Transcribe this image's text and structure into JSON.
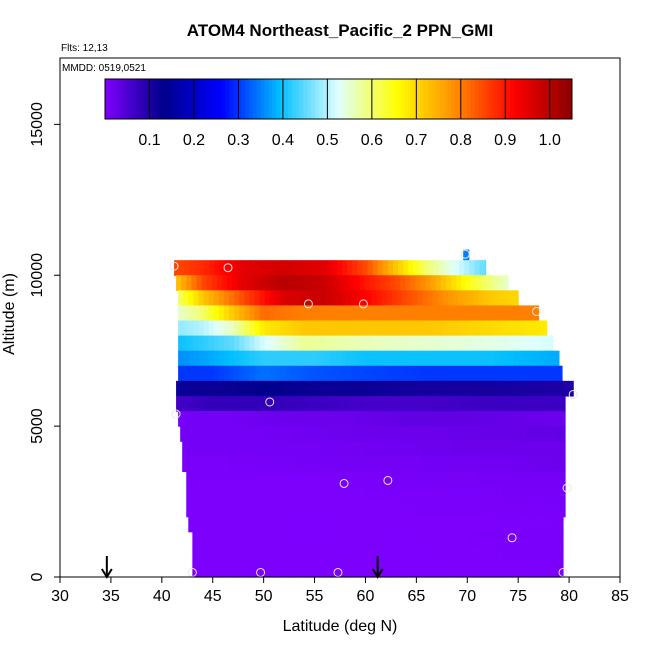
{
  "chart_data": {
    "type": "heatmap",
    "title": "ATOM4 Northeast_Pacific_2 PPN_GMI",
    "subtitle_flights": "Flts: 12,13",
    "subtitle_dates": "MMDD: 0519,0521",
    "xlabel": "Latitude (deg N)",
    "ylabel": "Altitude (m)",
    "xlim": [
      30,
      85
    ],
    "ylim": [
      0,
      17200
    ],
    "x_ticks": [
      "30",
      "35",
      "40",
      "45",
      "50",
      "55",
      "60",
      "65",
      "70",
      "75",
      "80",
      "85"
    ],
    "y_ticks": [
      "0",
      "5000",
      "10000",
      "15000"
    ],
    "colorbar": {
      "range": [
        0,
        1.05
      ],
      "tick_labels": [
        "0.1",
        "0.2",
        "0.3",
        "0.4",
        "0.5",
        "0.6",
        "0.7",
        "0.8",
        "0.9",
        "1.0"
      ],
      "tick_values": [
        0.1,
        0.2,
        0.3,
        0.4,
        0.5,
        0.6,
        0.7,
        0.8,
        0.9,
        1.0
      ],
      "colors": [
        "#7f00ff",
        "#00008b",
        "#0000ff",
        "#00bfff",
        "#e0ffff",
        "#ffff00",
        "#ff8c00",
        "#ff0000",
        "#8b0000"
      ]
    },
    "altitude_bands": [
      {
        "alt_bottom": 10000,
        "alt_top": 10500,
        "lat_start": 41.2,
        "lat_end": 71.8,
        "values": [
          [
            41.2,
            0.85
          ],
          [
            44,
            0.88
          ],
          [
            48,
            0.95
          ],
          [
            52,
            0.97
          ],
          [
            56,
            0.95
          ],
          [
            60,
            0.85
          ],
          [
            63,
            0.72
          ],
          [
            66,
            0.6
          ],
          [
            69,
            0.52
          ],
          [
            71.8,
            0.45
          ]
        ]
      },
      {
        "alt_bottom": 9500,
        "alt_top": 10000,
        "lat_start": 41.4,
        "lat_end": 74,
        "values": [
          [
            41.4,
            0.72
          ],
          [
            44,
            0.85
          ],
          [
            48,
            0.95
          ],
          [
            52,
            1.0
          ],
          [
            56,
            0.98
          ],
          [
            60,
            0.9
          ],
          [
            63,
            0.85
          ],
          [
            66,
            0.78
          ],
          [
            70,
            0.65
          ],
          [
            74,
            0.55
          ]
        ]
      },
      {
        "alt_bottom": 9000,
        "alt_top": 9500,
        "lat_start": 41.6,
        "lat_end": 75,
        "values": [
          [
            41.6,
            0.6
          ],
          [
            44,
            0.72
          ],
          [
            48,
            0.85
          ],
          [
            52,
            0.96
          ],
          [
            56,
            0.98
          ],
          [
            60,
            0.92
          ],
          [
            64,
            0.85
          ],
          [
            68,
            0.78
          ],
          [
            72,
            0.72
          ],
          [
            75,
            0.7
          ]
        ]
      },
      {
        "alt_bottom": 8500,
        "alt_top": 9000,
        "lat_start": 41.6,
        "lat_end": 77,
        "values": [
          [
            41.6,
            0.55
          ],
          [
            44,
            0.6
          ],
          [
            47,
            0.72
          ],
          [
            50,
            0.82
          ],
          [
            54,
            0.8
          ],
          [
            60,
            0.8
          ],
          [
            66,
            0.8
          ],
          [
            72,
            0.8
          ],
          [
            77,
            0.8
          ]
        ]
      },
      {
        "alt_bottom": 8000,
        "alt_top": 8500,
        "lat_start": 41.6,
        "lat_end": 77.8,
        "values": [
          [
            41.6,
            0.48
          ],
          [
            44,
            0.5
          ],
          [
            47,
            0.56
          ],
          [
            50,
            0.68
          ],
          [
            54,
            0.72
          ],
          [
            60,
            0.72
          ],
          [
            66,
            0.72
          ],
          [
            72,
            0.7
          ],
          [
            77.8,
            0.68
          ]
        ]
      },
      {
        "alt_bottom": 7500,
        "alt_top": 8000,
        "lat_start": 41.6,
        "lat_end": 78.4,
        "values": [
          [
            41.6,
            0.4
          ],
          [
            44,
            0.42
          ],
          [
            47,
            0.45
          ],
          [
            50,
            0.52
          ],
          [
            54,
            0.58
          ],
          [
            60,
            0.56
          ],
          [
            66,
            0.55
          ],
          [
            72,
            0.54
          ],
          [
            78.4,
            0.52
          ]
        ]
      },
      {
        "alt_bottom": 7000,
        "alt_top": 7500,
        "lat_start": 41.6,
        "lat_end": 79,
        "values": [
          [
            41.6,
            0.36
          ],
          [
            45,
            0.38
          ],
          [
            50,
            0.42
          ],
          [
            55,
            0.42
          ],
          [
            60,
            0.4
          ],
          [
            66,
            0.4
          ],
          [
            72,
            0.4
          ],
          [
            79,
            0.38
          ]
        ]
      },
      {
        "alt_bottom": 6500,
        "alt_top": 7000,
        "lat_start": 41.6,
        "lat_end": 79.3,
        "values": [
          [
            41.6,
            0.3
          ],
          [
            45,
            0.3
          ],
          [
            50,
            0.34
          ],
          [
            55,
            0.32
          ],
          [
            60,
            0.31
          ],
          [
            66,
            0.3
          ],
          [
            72,
            0.3
          ],
          [
            79.3,
            0.3
          ]
        ]
      },
      {
        "alt_bottom": 6000,
        "alt_top": 6500,
        "lat_start": 41.4,
        "lat_end": 80.4,
        "values": [
          [
            41.4,
            0.12
          ],
          [
            45,
            0.12
          ],
          [
            50,
            0.13
          ],
          [
            55,
            0.12
          ],
          [
            60,
            0.12
          ],
          [
            66,
            0.11
          ],
          [
            72,
            0.11
          ],
          [
            80.4,
            0.1
          ]
        ]
      },
      {
        "alt_bottom": 5500,
        "alt_top": 6000,
        "lat_start": 41.4,
        "lat_end": 79.6,
        "values": [
          [
            41.4,
            0.06
          ],
          [
            45,
            0.08
          ],
          [
            50,
            0.08
          ],
          [
            55,
            0.07
          ],
          [
            60,
            0.06
          ],
          [
            66,
            0.06
          ],
          [
            72,
            0.07
          ],
          [
            79.6,
            0.07
          ]
        ]
      },
      {
        "alt_bottom": 5000,
        "alt_top": 5500,
        "lat_start": 41.6,
        "lat_end": 79.6,
        "values": [
          [
            41.6,
            0.01
          ],
          [
            46,
            0.01
          ],
          [
            52,
            0.02
          ],
          [
            58,
            0.02
          ],
          [
            64,
            0.03
          ],
          [
            70,
            0.03
          ],
          [
            79.6,
            0.02
          ]
        ]
      },
      {
        "alt_bottom": 4500,
        "alt_top": 5000,
        "lat_start": 41.8,
        "lat_end": 79.6,
        "values": [
          [
            41.8,
            0.01
          ],
          [
            48,
            0.01
          ],
          [
            54,
            0.015
          ],
          [
            60,
            0.02
          ],
          [
            66,
            0.02
          ],
          [
            72,
            0.025
          ],
          [
            79.6,
            0.03
          ]
        ]
      },
      {
        "alt_bottom": 4000,
        "alt_top": 4500,
        "lat_start": 42,
        "lat_end": 79.6,
        "values": [
          [
            42,
            0.01
          ],
          [
            50,
            0.01
          ],
          [
            56,
            0.012
          ],
          [
            62,
            0.015
          ],
          [
            70,
            0.02
          ],
          [
            79.6,
            0.02
          ]
        ]
      },
      {
        "alt_bottom": 3500,
        "alt_top": 4000,
        "lat_start": 42,
        "lat_end": 79.6,
        "values": [
          [
            42,
            0.005
          ],
          [
            50,
            0.008
          ],
          [
            58,
            0.01
          ],
          [
            66,
            0.012
          ],
          [
            74,
            0.015
          ],
          [
            79.6,
            0.02
          ]
        ]
      },
      {
        "alt_bottom": 3000,
        "alt_top": 3500,
        "lat_start": 42.4,
        "lat_end": 79.6,
        "values": [
          [
            42.4,
            0.005
          ],
          [
            55,
            0.005
          ],
          [
            65,
            0.008
          ],
          [
            79.6,
            0.01
          ]
        ]
      },
      {
        "alt_bottom": 2500,
        "alt_top": 3000,
        "lat_start": 42.4,
        "lat_end": 79.6,
        "values": [
          [
            42.4,
            0.003
          ],
          [
            55,
            0.003
          ],
          [
            65,
            0.005
          ],
          [
            79.6,
            0.008
          ]
        ]
      },
      {
        "alt_bottom": 2000,
        "alt_top": 2500,
        "lat_start": 42.4,
        "lat_end": 79.6,
        "values": [
          [
            42.4,
            0.003
          ],
          [
            60,
            0.003
          ],
          [
            70,
            0.005
          ],
          [
            79.6,
            0.006
          ]
        ]
      },
      {
        "alt_bottom": 1500,
        "alt_top": 2000,
        "lat_start": 42.6,
        "lat_end": 79.4,
        "values": [
          [
            42.6,
            0.002
          ],
          [
            60,
            0.003
          ],
          [
            79.4,
            0.004
          ]
        ]
      },
      {
        "alt_bottom": 1000,
        "alt_top": 1500,
        "lat_start": 43,
        "lat_end": 79.4,
        "values": [
          [
            43,
            0.002
          ],
          [
            60,
            0.002
          ],
          [
            75,
            0.005
          ],
          [
            79.4,
            0.006
          ]
        ]
      },
      {
        "alt_bottom": 500,
        "alt_top": 1000,
        "lat_start": 43,
        "lat_end": 79.4,
        "values": [
          [
            43,
            0.002
          ],
          [
            60,
            0.002
          ],
          [
            74,
            0.004
          ],
          [
            79.4,
            0.006
          ]
        ]
      },
      {
        "alt_bottom": 0,
        "alt_top": 500,
        "lat_start": 43,
        "lat_end": 79.4,
        "values": [
          [
            43,
            0.002
          ],
          [
            60,
            0.002
          ],
          [
            79.4,
            0.004
          ]
        ]
      }
    ],
    "extra_patch": {
      "alt_bottom": 10500,
      "alt_top": 10850,
      "lat_start": 69.6,
      "lat_end": 70.2,
      "value": 0.35
    },
    "sample_points": [
      [
        41.2,
        10300
      ],
      [
        46.5,
        10250
      ],
      [
        54.4,
        9050
      ],
      [
        59.8,
        9050
      ],
      [
        69.8,
        10700
      ],
      [
        76.8,
        8800
      ],
      [
        80.4,
        6050
      ],
      [
        50.6,
        5800
      ],
      [
        41.4,
        5400
      ],
      [
        57.9,
        3100
      ],
      [
        62.2,
        3200
      ],
      [
        79.8,
        2950
      ],
      [
        74.4,
        1300
      ],
      [
        43.0,
        150
      ],
      [
        49.7,
        150
      ],
      [
        57.3,
        150
      ],
      [
        79.4,
        150
      ]
    ],
    "flight_arrows_lat": [
      34.6,
      61.2
    ]
  }
}
